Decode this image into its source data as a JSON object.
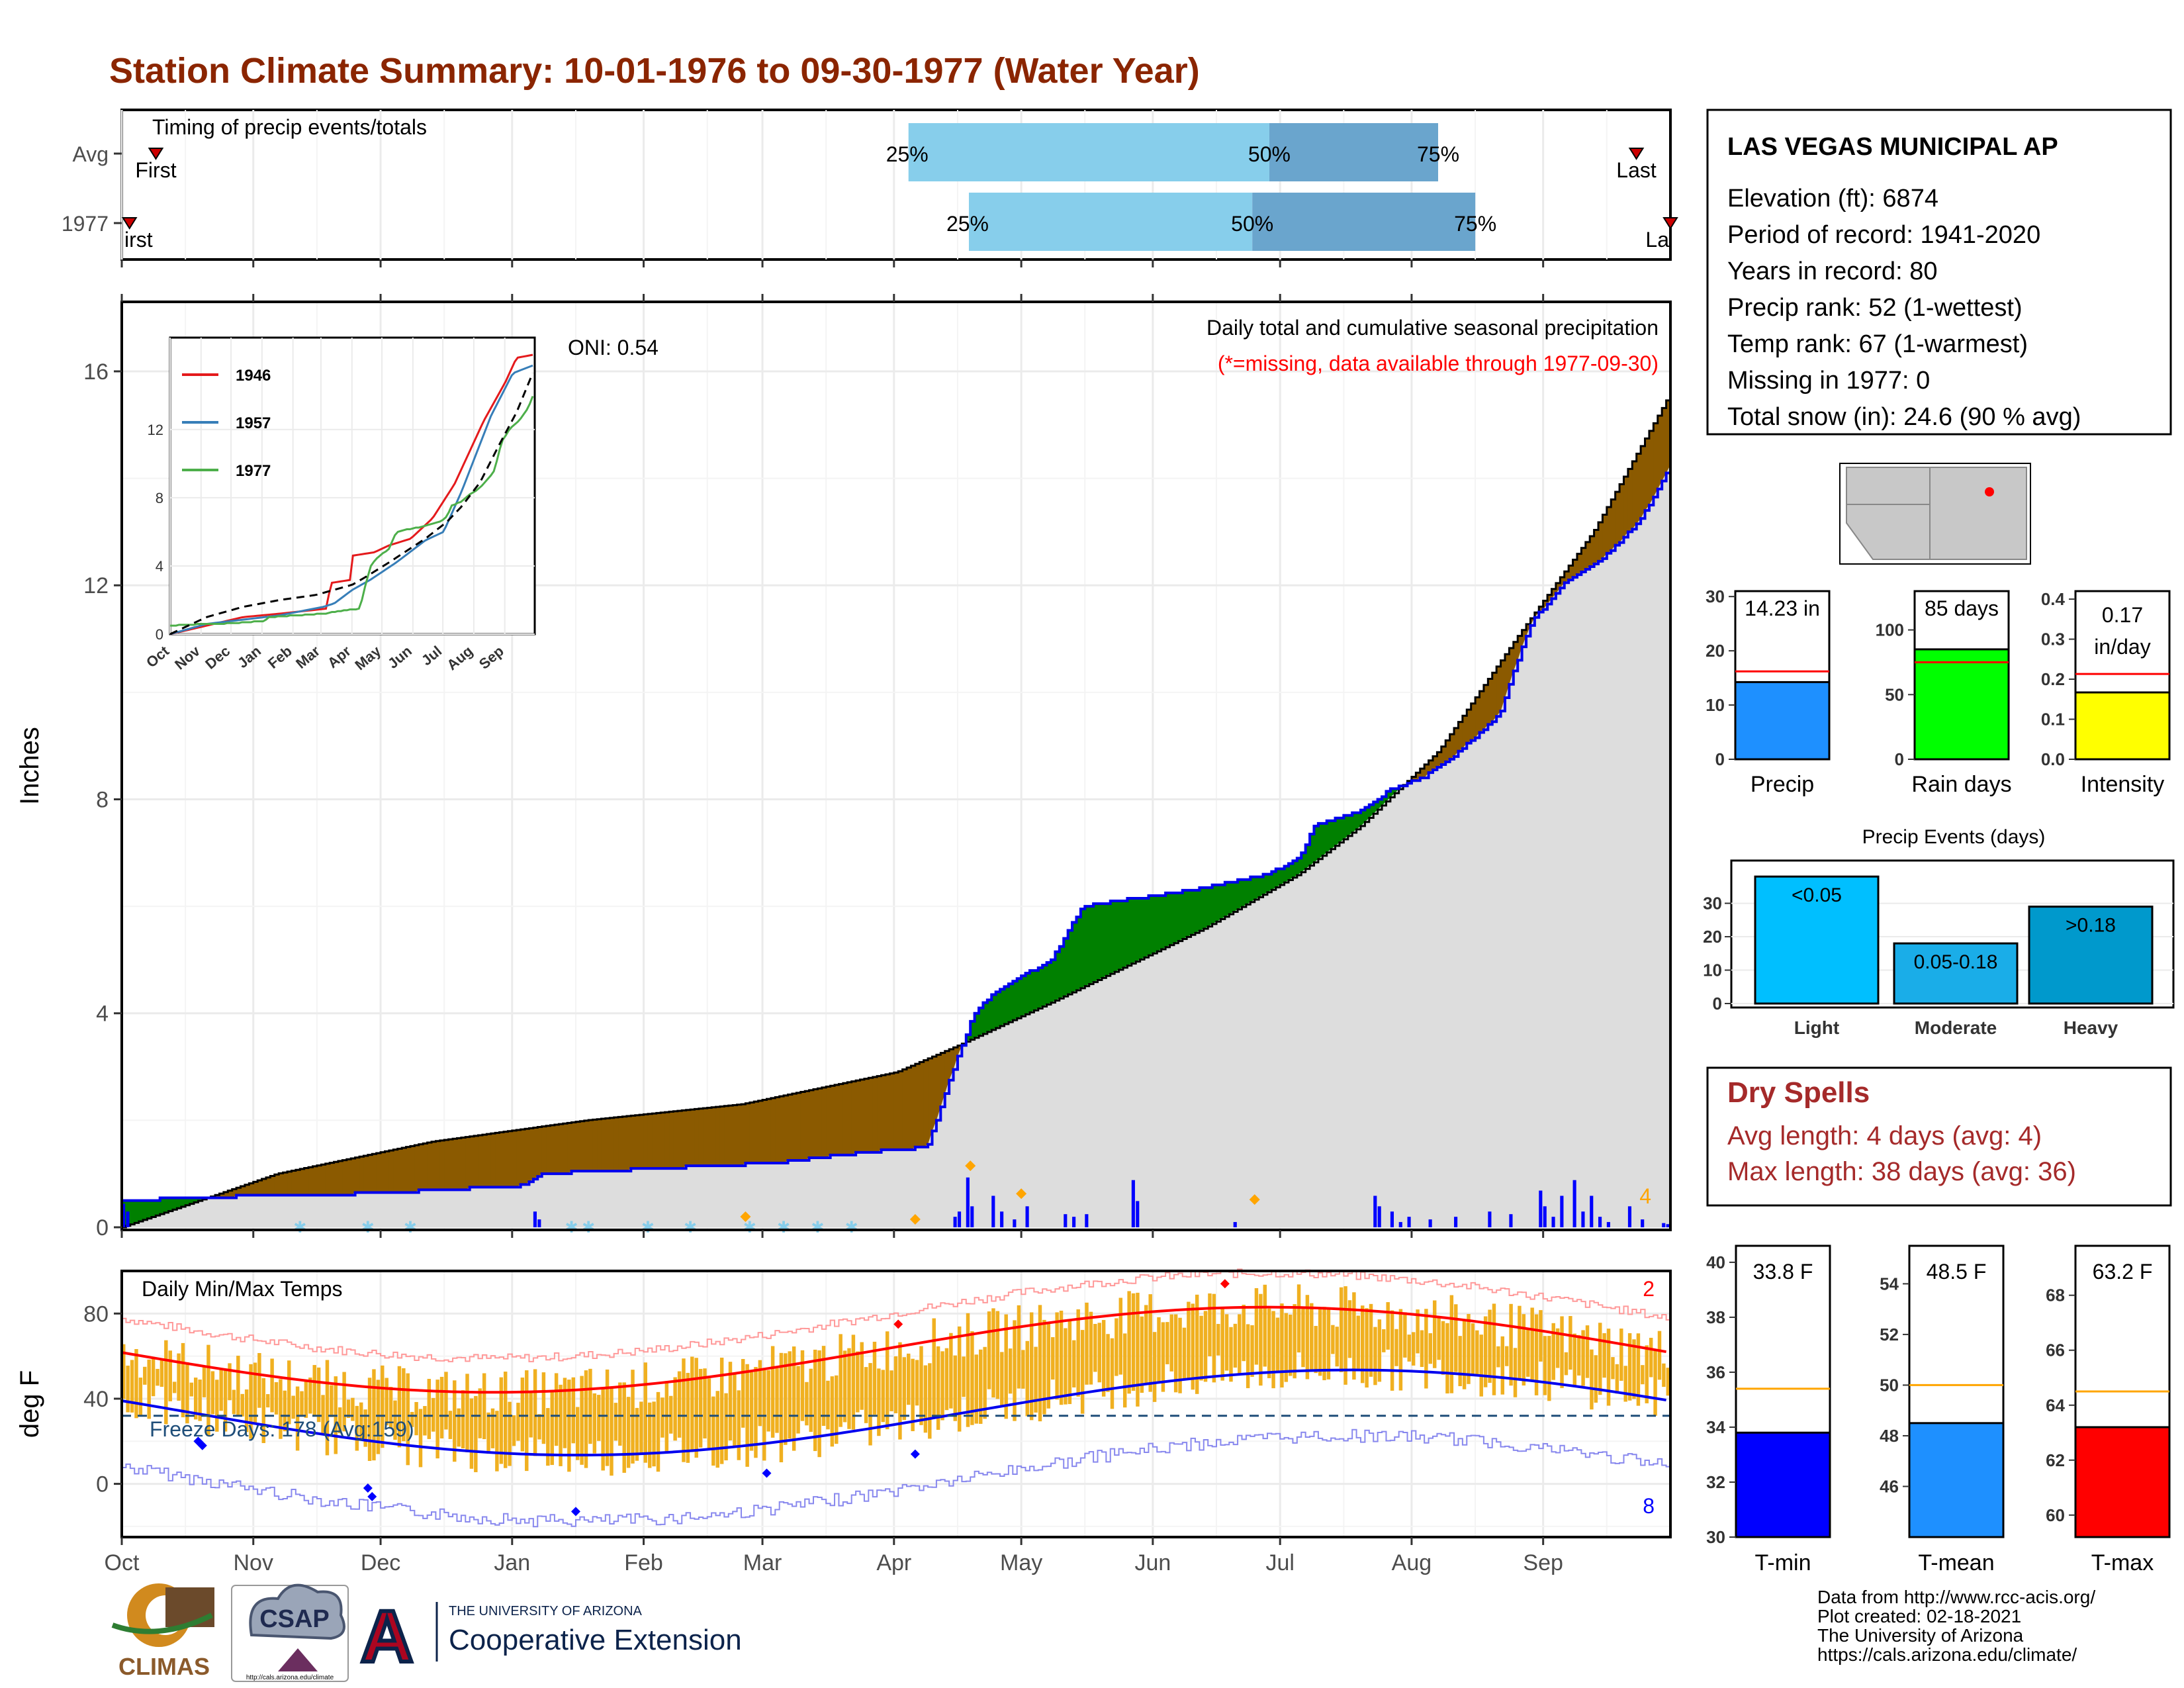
{
  "title": "Station Climate Summary: 10-01-1976 to 09-30-1977 (Water Year)",
  "colors": {
    "title": "#8B2500",
    "above_normal": "#8B5A00",
    "below_normal": "#008000",
    "obs_line": "#0000EE",
    "grid": "#EBEBEB",
    "normal_fill": "#DDDDDD",
    "tmin": "#0000FF",
    "tmean": "#1E90FF",
    "tmax": "#FF0000",
    "temp_bars": "#F0B020",
    "light_blue": "#87CEEB",
    "mid_blue": "#6AA5CD"
  },
  "months": [
    "Oct",
    "Nov",
    "Dec",
    "Jan",
    "Feb",
    "Mar",
    "Apr",
    "May",
    "Jun",
    "Jul",
    "Aug",
    "Sep"
  ],
  "timing": {
    "label": "Timing of precip events/totals",
    "rows": [
      {
        "name": "Avg",
        "first": "First",
        "last": "Last",
        "p25": "25%",
        "p50": "50%",
        "p75": "75%",
        "q25_frac": 0.508,
        "q50_frac": 0.741,
        "q75_frac": 0.85,
        "first_frac": 0.022,
        "last_frac": 0.978
      },
      {
        "name": "1977",
        "first": "irst",
        "last": "La",
        "p25": "25%",
        "p50": "50%",
        "p75": "75%",
        "q25_frac": 0.547,
        "q50_frac": 0.73,
        "q75_frac": 0.874,
        "first_frac": 0.005,
        "last_frac": 1.0
      }
    ]
  },
  "precip_panel": {
    "ylabel": "Inches",
    "yticks": [
      "0",
      "4",
      "8",
      "12",
      "16"
    ],
    "ymax": 17.2,
    "header": "Daily total and cumulative seasonal precipitation",
    "missing_note": "(*=missing, data available through 1977-09-30)",
    "oni": "ONI: 0.54",
    "count_label": "4",
    "cum_obs_key": [
      [
        0,
        0.5
      ],
      [
        0.045,
        0.55
      ],
      [
        0.1,
        0.6
      ],
      [
        0.16,
        0.63
      ],
      [
        0.26,
        0.78
      ],
      [
        0.27,
        1.0
      ],
      [
        0.42,
        1.2
      ],
      [
        0.48,
        1.4
      ],
      [
        0.52,
        1.5
      ],
      [
        0.535,
        2.8
      ],
      [
        0.55,
        4.0
      ],
      [
        0.56,
        4.3
      ],
      [
        0.575,
        4.6
      ],
      [
        0.6,
        5.0
      ],
      [
        0.62,
        6.0
      ],
      [
        0.69,
        6.3
      ],
      [
        0.74,
        6.6
      ],
      [
        0.76,
        6.9
      ],
      [
        0.77,
        7.5
      ],
      [
        0.8,
        7.8
      ],
      [
        0.82,
        8.2
      ],
      [
        0.84,
        8.4
      ],
      [
        0.86,
        8.8
      ],
      [
        0.89,
        9.6
      ],
      [
        0.9,
        10.5
      ],
      [
        0.91,
        11.3
      ],
      [
        0.93,
        12.0
      ],
      [
        0.96,
        12.6
      ],
      [
        0.98,
        13.2
      ],
      [
        1.0,
        14.23
      ]
    ],
    "cum_normal_key": [
      [
        0,
        0
      ],
      [
        0.05,
        0.5
      ],
      [
        0.1,
        1.0
      ],
      [
        0.2,
        1.6
      ],
      [
        0.3,
        2.0
      ],
      [
        0.4,
        2.3
      ],
      [
        0.5,
        2.9
      ],
      [
        0.54,
        3.4
      ],
      [
        0.6,
        4.2
      ],
      [
        0.7,
        5.6
      ],
      [
        0.76,
        6.6
      ],
      [
        0.8,
        7.5
      ],
      [
        0.85,
        8.9
      ],
      [
        0.9,
        11.0
      ],
      [
        0.95,
        13.0
      ],
      [
        1.0,
        15.6
      ]
    ]
  },
  "inset": {
    "legend": [
      "1946",
      "1957",
      "1977"
    ],
    "yticks": [
      "0",
      "4",
      "8",
      "12"
    ],
    "ymax": 17,
    "xticks": [
      "Oct",
      "Nov",
      "Dec",
      "Jan",
      "Feb",
      "Mar",
      "Apr",
      "May",
      "Jun",
      "Jul",
      "Aug",
      "Sep"
    ],
    "colors": [
      "#E41A1C",
      "#377EB8",
      "#4DAF4A"
    ]
  },
  "temp_panel": {
    "ylabel": "deg F",
    "title": "Daily Min/Max Temps",
    "yticks": [
      "0",
      "40",
      "80"
    ],
    "ymin": -25,
    "ymax": 100,
    "freeze_label": "Freeze Days: 178 (Avg:159)",
    "freeze_line": 32,
    "hi_count": "2",
    "lo_count": "8"
  },
  "station_info": {
    "name": "LAS VEGAS MUNICIPAL AP",
    "lines": [
      "Elevation (ft): 6874",
      "Period of record: 1941-2020",
      "Years in record: 80",
      "Precip rank: 52 (1-wettest)",
      "Temp rank: 67 (1-warmest)",
      "Missing in 1977: 0",
      "Total snow (in): 24.6 (90 % avg)"
    ]
  },
  "summary_bars": [
    {
      "label": "Precip",
      "value_text": "14.23 in",
      "value": 14.23,
      "normal": 16.2,
      "ymax": 31,
      "yticks": [
        "0",
        "10",
        "20",
        "30"
      ],
      "tick_vals": [
        0,
        10,
        20,
        30
      ],
      "color": "#1E90FF"
    },
    {
      "label": "Rain days",
      "value_text": "85 days",
      "value": 85,
      "normal": 75,
      "ymax": 130,
      "yticks": [
        "0",
        "50",
        "100"
      ],
      "tick_vals": [
        0,
        50,
        100
      ],
      "color": "#00FF00"
    },
    {
      "label": "Intensity",
      "value_text": "0.17 in/day",
      "value_line1": "0.17",
      "value_line2": "in/day",
      "value": 0.167,
      "normal": 0.213,
      "ymax": 0.42,
      "yticks": [
        "0.0",
        "0.1",
        "0.2",
        "0.3",
        "0.4"
      ],
      "tick_vals": [
        0,
        0.1,
        0.2,
        0.3,
        0.4
      ],
      "color": "#FFFF00"
    }
  ],
  "precip_events": {
    "title": "Precip Events (days)",
    "yticks": [
      "0",
      "10",
      "20",
      "30"
    ],
    "ymax": 42,
    "bars": [
      {
        "label": "Light",
        "value_label": "<0.05",
        "value": 38,
        "color": "#00BFFF"
      },
      {
        "label": "Moderate",
        "value_label": "0.05-0.18",
        "value": 18,
        "color": "#1AADE8"
      },
      {
        "label": "Heavy",
        "value_label": ">0.18",
        "value": 29,
        "color": "#0099CC"
      }
    ]
  },
  "dry_spells": {
    "title": "Dry Spells",
    "avg_length": "Avg length: 4 days (avg: 4)",
    "max_length": "Max length: 38 days (avg: 36)"
  },
  "temp_bars": [
    {
      "label": "T-min",
      "value_text": "33.8 F",
      "value": 33.8,
      "normal": 35.4,
      "ymin": 30,
      "ymax": 40.6,
      "yticks": [
        "30",
        "32",
        "34",
        "36",
        "38",
        "40"
      ],
      "tick_vals": [
        30,
        32,
        34,
        36,
        38,
        40
      ],
      "color": "#0000FF"
    },
    {
      "label": "T-mean",
      "value_text": "48.5 F",
      "value": 48.5,
      "normal": 50,
      "ymin": 44,
      "ymax": 55.5,
      "yticks": [
        "46",
        "48",
        "50",
        "52",
        "54"
      ],
      "tick_vals": [
        46,
        48,
        50,
        52,
        54
      ],
      "color": "#1E90FF"
    },
    {
      "label": "T-max",
      "value_text": "63.2 F",
      "value": 63.2,
      "normal": 64.5,
      "ymin": 59.2,
      "ymax": 69.8,
      "yticks": [
        "60",
        "62",
        "64",
        "66",
        "68"
      ],
      "tick_vals": [
        60,
        62,
        64,
        66,
        68
      ],
      "color": "#FF0000"
    }
  ],
  "footer": {
    "credits": [
      "Data from http://www.rcc-acis.org/",
      "Plot created: 02-18-2021",
      "The University of Arizona",
      "https://cals.arizona.edu/climate/"
    ],
    "climas": "CLIMAS",
    "csap": "CSAP",
    "csap_url": "http://cals.arizona.edu/climate",
    "ua_small": "THE UNIVERSITY OF ARIZONA",
    "ua_big": "Cooperative Extension"
  }
}
